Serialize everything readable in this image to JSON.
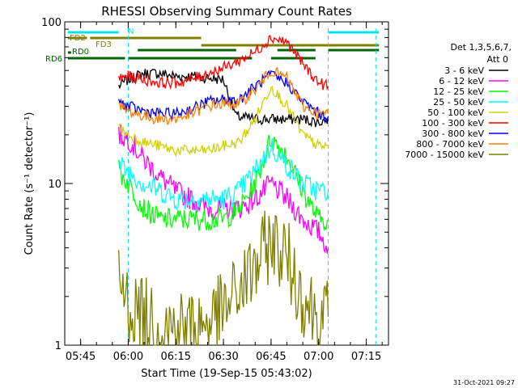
{
  "chart_data": {
    "type": "line",
    "title": "RHESSI Observing Summary Count Rates",
    "xlabel": "Start Time (19-Sep-15 05:43:02)",
    "ylabel": "Count Rate (s⁻¹ detector⁻¹)",
    "y_scale": "log",
    "ylim": [
      1,
      100
    ],
    "xlim": [
      "05:40",
      "07:22"
    ],
    "x_ticks": [
      "05:45",
      "06:00",
      "06:15",
      "06:30",
      "06:45",
      "07:00",
      "07:15"
    ],
    "y_ticks": [
      "1",
      "10",
      "100"
    ],
    "grid": false,
    "legend_title": [
      "Det 1,3,5,6,7,",
      "Att 0"
    ],
    "legend_position": "right",
    "series": [
      {
        "name": "3 - 6 keV",
        "color": "#000000",
        "x": [
          "05:57",
          "06:00",
          "06:05",
          "06:10",
          "06:15",
          "06:20",
          "06:25",
          "06:30",
          "06:34",
          "06:40",
          "06:45",
          "06:50",
          "06:55",
          "07:00",
          "07:03"
        ],
        "y": [
          40,
          44,
          48,
          48,
          46,
          46,
          45,
          44,
          26,
          25,
          25,
          25,
          25,
          24,
          25
        ]
      },
      {
        "name": "6 - 12 keV",
        "color": "#ff00ff",
        "x": [
          "05:57",
          "06:00",
          "06:05",
          "06:10",
          "06:15",
          "06:20",
          "06:25",
          "06:30",
          "06:35",
          "06:40",
          "06:45",
          "06:50",
          "06:55",
          "07:00",
          "07:03"
        ],
        "y": [
          20,
          19,
          14,
          11,
          9,
          8,
          7,
          7,
          7,
          8,
          10,
          8,
          6,
          5,
          4
        ]
      },
      {
        "name": "12 - 25 keV",
        "color": "#00ff00",
        "x": [
          "05:57",
          "06:00",
          "06:05",
          "06:10",
          "06:15",
          "06:20",
          "06:25",
          "06:30",
          "06:35",
          "06:40",
          "06:45",
          "06:50",
          "06:55",
          "07:00",
          "07:03"
        ],
        "y": [
          12,
          10,
          7,
          6,
          6,
          6,
          6,
          6,
          7,
          10,
          19,
          15,
          9,
          6,
          6
        ]
      },
      {
        "name": "25 - 50 keV",
        "color": "#00ffff",
        "x": [
          "05:57",
          "06:00",
          "06:05",
          "06:10",
          "06:15",
          "06:20",
          "06:25",
          "06:30",
          "06:35",
          "06:40",
          "06:45",
          "06:50",
          "06:55",
          "07:00",
          "07:03"
        ],
        "y": [
          13,
          12,
          10,
          9,
          8,
          8,
          8,
          8,
          9,
          12,
          17,
          13,
          10,
          9,
          9
        ]
      },
      {
        "name": "50 - 100 keV",
        "color": "#d2d200",
        "x": [
          "05:57",
          "06:00",
          "06:05",
          "06:10",
          "06:15",
          "06:20",
          "06:25",
          "06:30",
          "06:35",
          "06:40",
          "06:45",
          "06:50",
          "06:55",
          "07:00",
          "07:03"
        ],
        "y": [
          22,
          20,
          18,
          17,
          16,
          16,
          16,
          17,
          18,
          25,
          40,
          30,
          20,
          17,
          17
        ]
      },
      {
        "name": "100 - 300 keV",
        "color": "#ff0000",
        "x": [
          "05:57",
          "06:00",
          "06:05",
          "06:10",
          "06:15",
          "06:20",
          "06:25",
          "06:30",
          "06:33",
          "06:40",
          "06:45",
          "06:50",
          "06:55",
          "07:00",
          "07:03"
        ],
        "y": [
          45,
          46,
          44,
          42,
          42,
          44,
          48,
          52,
          55,
          65,
          80,
          75,
          55,
          42,
          40
        ]
      },
      {
        "name": "300 - 800 keV",
        "color": "#0000ff",
        "x": [
          "05:57",
          "06:00",
          "06:05",
          "06:10",
          "06:15",
          "06:20",
          "06:25",
          "06:30",
          "06:35",
          "06:40",
          "06:45",
          "06:50",
          "06:55",
          "07:00",
          "07:03"
        ],
        "y": [
          32,
          30,
          28,
          27,
          27,
          29,
          32,
          33,
          33,
          40,
          47,
          42,
          32,
          27,
          26
        ]
      },
      {
        "name": "800 - 7000 keV",
        "color": "#ff8000",
        "x": [
          "05:57",
          "06:00",
          "06:05",
          "06:10",
          "06:15",
          "06:20",
          "06:25",
          "06:30",
          "06:35",
          "06:40",
          "06:45",
          "06:50",
          "06:55",
          "07:00",
          "07:03"
        ],
        "y": [
          30,
          28,
          26,
          25,
          25,
          27,
          30,
          31,
          31,
          38,
          50,
          45,
          30,
          27,
          27
        ]
      },
      {
        "name": "7000 - 15000 keV",
        "color": "#808000",
        "x": [
          "05:57",
          "06:00",
          "06:05",
          "06:10",
          "06:15",
          "06:20",
          "06:25",
          "06:30",
          "06:35",
          "06:40",
          "06:45",
          "06:50",
          "06:55",
          "07:00",
          "07:03"
        ],
        "y": [
          2.5,
          1.8,
          1.5,
          1.3,
          1.3,
          1.3,
          1.4,
          1.6,
          2.2,
          3,
          4.5,
          3.5,
          2,
          1.5,
          1.5
        ]
      }
    ],
    "flags": [
      {
        "name": "N",
        "color": "#00e5ee",
        "label_shown": true,
        "segments": [
          [
            "05:41",
            "05:57"
          ],
          [
            "07:03",
            "07:19"
          ]
        ]
      },
      {
        "name": "FD2",
        "color": "#808000",
        "label_shown": true,
        "segments": [
          [
            "05:41",
            "05:47"
          ],
          [
            "05:48",
            "06:23"
          ]
        ]
      },
      {
        "name": "FD3",
        "color": "#808000",
        "label_shown": true,
        "segments": [
          [
            "06:23",
            "07:19"
          ]
        ]
      },
      {
        "name": "RD0",
        "color": "#006400",
        "label_shown": true,
        "segments": [
          [
            "05:41",
            "05:42"
          ]
        ]
      },
      {
        "name": "",
        "color": "#006400",
        "label_shown": false,
        "segments": [
          [
            "06:03",
            "06:34"
          ],
          [
            "06:47",
            "06:59"
          ],
          [
            "07:03",
            "07:19"
          ]
        ]
      },
      {
        "name": "RD6",
        "color": "#006400",
        "label_shown": true,
        "segments": [
          [
            "05:41",
            "05:59"
          ],
          [
            "06:00",
            "06:39"
          ],
          [
            "06:45",
            "06:59"
          ]
        ]
      }
    ],
    "vertical_markers": [
      {
        "time": "06:00",
        "color": "#00e5ee",
        "style": "dashed"
      },
      {
        "time": "07:03",
        "color": "#00e5ee",
        "style": "dashed"
      },
      {
        "time": "07:18",
        "color": "#00e5ee",
        "style": "dashed"
      }
    ]
  },
  "footer_date": "31-Oct-2021 09:27"
}
